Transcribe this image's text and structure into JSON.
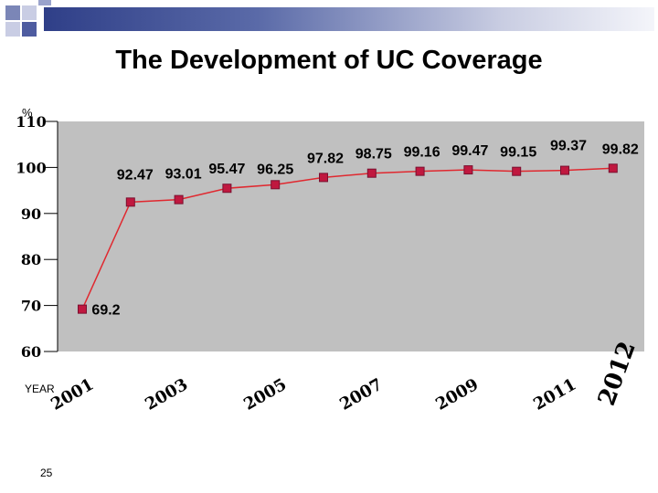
{
  "slide": {
    "title": "The Development of  UC Coverage",
    "page_number": "25"
  },
  "chart_data": {
    "type": "line",
    "title": "The Development of  UC Coverage",
    "xlabel": "YEAR",
    "ylabel": "%",
    "x_tick_labels": [
      "2001",
      "2003",
      "2005",
      "2007",
      "2009",
      "2011",
      "2012"
    ],
    "y_tick_labels": [
      "60",
      "70",
      "80",
      "90",
      "100",
      "110"
    ],
    "ylim": [
      60,
      110
    ],
    "grid": false,
    "legend": "none",
    "colors": {
      "line": "#e0282f",
      "marker": "#c0183f",
      "marker_edge": "#7a1030",
      "plot_bg": "#c0c0c0"
    },
    "series": [
      {
        "x": [
          2001,
          2002,
          2003,
          2004,
          2005,
          2006,
          2007,
          2008,
          2009,
          2010,
          2011,
          2012
        ],
        "values": [
          69.2,
          92.47,
          93.01,
          95.47,
          96.25,
          97.82,
          98.75,
          99.16,
          99.47,
          99.15,
          99.37,
          99.82
        ],
        "labels": [
          "69.2",
          "92.47",
          "93.01",
          "95.47",
          "96.25",
          "97.82",
          "98.75",
          "99.16",
          "99.47",
          "99.15",
          "99.37",
          "99.82"
        ]
      }
    ]
  }
}
